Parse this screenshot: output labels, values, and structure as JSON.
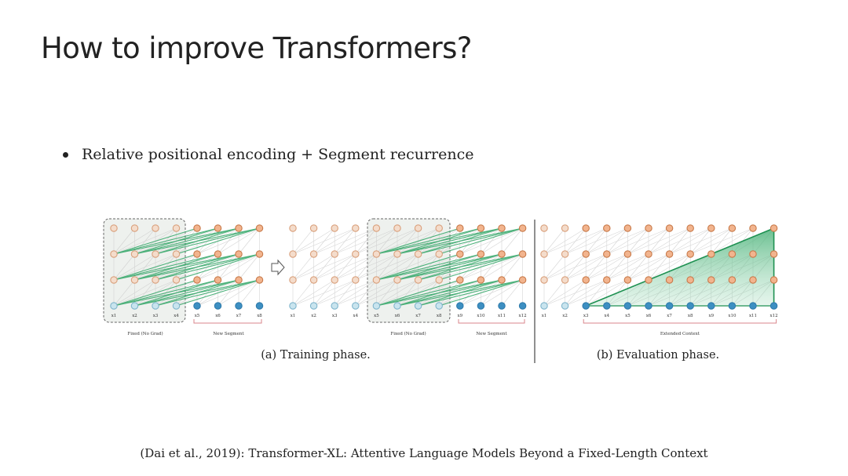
{
  "slide": {
    "title": "How to improve Transformers?",
    "bullet": "Relative positional encoding + Segment recurrence",
    "citation": "(Dai et al., 2019): Transformer-XL: Attentive Language Models Beyond a Fixed-Length Context"
  },
  "figure": {
    "training": {
      "caption": "(a) Training phase.",
      "panels": [
        {
          "fixed_label": "Fixed (No Grad)",
          "new_label": "New Segment",
          "tokens": [
            "x1",
            "x2",
            "x3",
            "x4",
            "x5",
            "x6",
            "x7",
            "x8"
          ]
        },
        {
          "fixed_label": "Fixed (No Grad)",
          "new_label": "New Segment",
          "tokens": [
            "x1",
            "x2",
            "x3",
            "x4",
            "x5",
            "x6",
            "x7",
            "x8",
            "x9",
            "x10",
            "x11",
            "x12"
          ]
        }
      ]
    },
    "evaluation": {
      "caption": "(b) Evaluation phase.",
      "context_label": "Extended Context",
      "tokens": [
        "x1",
        "x2",
        "x3",
        "x4",
        "x5",
        "x6",
        "x7",
        "x8",
        "x9",
        "x10",
        "x11",
        "x12"
      ]
    },
    "colors": {
      "hidden_fill": "#f4dccb",
      "hidden_stroke": "#d9a07c",
      "hidden_active_fill": "#f2b48e",
      "hidden_active_stroke": "#c87a4a",
      "input_fill": "#c9e4ee",
      "input_stroke": "#7fb5cc",
      "input_active_fill": "#3d8fc2",
      "input_active_stroke": "#2f7bab",
      "edge": "#c8c8c8",
      "green": "#2fa565",
      "green_area": "#63c08d",
      "bracket": "#d9868b",
      "fixed_box_fill": "#eef1ee",
      "fixed_box_stroke": "#666666"
    }
  }
}
